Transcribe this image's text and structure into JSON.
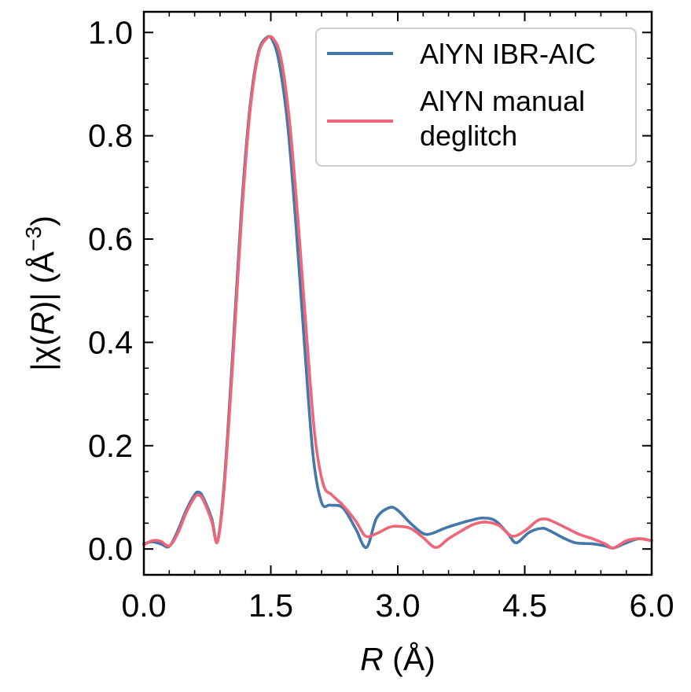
{
  "chart_data": {
    "type": "line",
    "xlabel": "R (Å)",
    "ylabel": "|χ(R)| (Å⁻³)",
    "xlim": [
      0.0,
      6.0
    ],
    "ylim": [
      -0.05,
      1.04
    ],
    "x_ticks": [
      0.0,
      1.5,
      3.0,
      4.5,
      6.0
    ],
    "x_tick_labels": [
      "0.0",
      "1.5",
      "3.0",
      "4.5",
      "6.0"
    ],
    "y_ticks": [
      0.0,
      0.2,
      0.4,
      0.6,
      0.8,
      1.0
    ],
    "y_tick_labels": [
      "0.0",
      "0.2",
      "0.4",
      "0.6",
      "0.8",
      "1.0"
    ],
    "x_minor_step": 0.3,
    "y_minor_step": 0.05,
    "grid": false,
    "legend_position": "top-right",
    "series": [
      {
        "name": "AlYN IBR-AIC",
        "color": "#4477aa",
        "x": [
          0.0,
          0.1,
          0.2,
          0.3,
          0.4,
          0.5,
          0.6,
          0.65,
          0.7,
          0.8,
          0.87,
          0.95,
          1.05,
          1.15,
          1.25,
          1.35,
          1.45,
          1.52,
          1.6,
          1.7,
          1.8,
          1.9,
          2.0,
          2.1,
          2.2,
          2.35,
          2.5,
          2.63,
          2.75,
          2.9,
          3.0,
          3.15,
          3.3,
          3.4,
          3.55,
          3.7,
          3.85,
          4.0,
          4.15,
          4.3,
          4.4,
          4.55,
          4.7,
          4.8,
          4.95,
          5.1,
          5.3,
          5.45,
          5.55,
          5.7,
          5.85,
          6.0
        ],
        "y": [
          0.01,
          0.014,
          0.01,
          0.005,
          0.035,
          0.075,
          0.105,
          0.11,
          0.1,
          0.06,
          0.015,
          0.13,
          0.38,
          0.65,
          0.85,
          0.96,
          0.99,
          0.985,
          0.94,
          0.82,
          0.62,
          0.39,
          0.18,
          0.09,
          0.085,
          0.08,
          0.04,
          0.003,
          0.06,
          0.08,
          0.075,
          0.05,
          0.03,
          0.03,
          0.04,
          0.048,
          0.055,
          0.06,
          0.055,
          0.03,
          0.012,
          0.032,
          0.04,
          0.035,
          0.022,
          0.012,
          0.01,
          0.006,
          0.002,
          0.012,
          0.02,
          0.016
        ]
      },
      {
        "name": "AlYN manual deglitch",
        "color": "#ee6677",
        "x": [
          0.0,
          0.1,
          0.2,
          0.3,
          0.4,
          0.5,
          0.6,
          0.65,
          0.7,
          0.8,
          0.87,
          0.95,
          1.05,
          1.15,
          1.25,
          1.35,
          1.45,
          1.53,
          1.62,
          1.72,
          1.82,
          1.92,
          2.02,
          2.12,
          2.22,
          2.35,
          2.5,
          2.62,
          2.75,
          2.9,
          3.0,
          3.15,
          3.3,
          3.45,
          3.6,
          3.75,
          3.9,
          4.05,
          4.2,
          4.35,
          4.5,
          4.65,
          4.75,
          4.85,
          5.0,
          5.15,
          5.3,
          5.45,
          5.55,
          5.7,
          5.85,
          6.0
        ],
        "y": [
          0.008,
          0.016,
          0.015,
          0.006,
          0.03,
          0.07,
          0.1,
          0.104,
          0.095,
          0.055,
          0.014,
          0.12,
          0.36,
          0.63,
          0.84,
          0.955,
          0.988,
          0.988,
          0.95,
          0.83,
          0.64,
          0.42,
          0.22,
          0.125,
          0.105,
          0.085,
          0.055,
          0.025,
          0.03,
          0.042,
          0.044,
          0.04,
          0.022,
          0.003,
          0.02,
          0.035,
          0.048,
          0.052,
          0.045,
          0.025,
          0.035,
          0.055,
          0.058,
          0.052,
          0.04,
          0.028,
          0.02,
          0.01,
          0.002,
          0.016,
          0.02,
          0.016
        ]
      }
    ]
  }
}
